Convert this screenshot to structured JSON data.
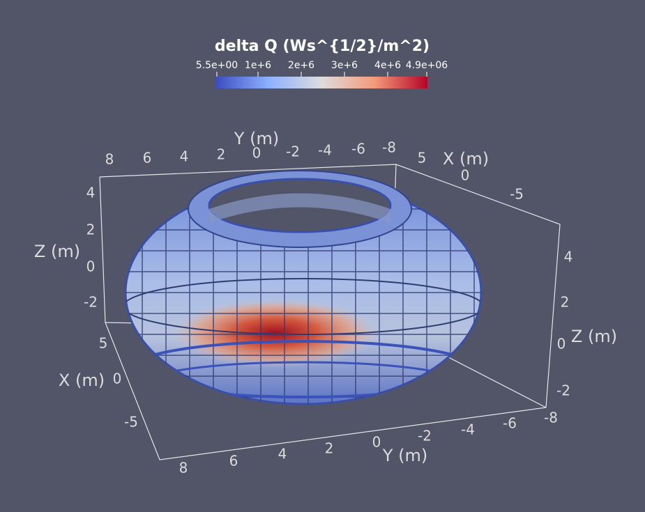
{
  "colorbar": {
    "title": "delta Q (Ws^{1/2}/m^2)",
    "ticks": [
      "5.5e+00",
      "1e+6",
      "2e+6",
      "3e+6",
      "4e+6",
      "4.9e+06"
    ]
  },
  "axes": {
    "y_top": {
      "label": "Y (m)",
      "ticks": [
        "8",
        "6",
        "4",
        "2",
        "0",
        "-2",
        "-4",
        "-6",
        "-8"
      ]
    },
    "x_top": {
      "label": "X (m)",
      "ticks": [
        "5",
        "0",
        "-5"
      ]
    },
    "z_left": {
      "label": "Z (m)",
      "ticks": [
        "4",
        "2",
        "0",
        "-2"
      ]
    },
    "x_left": {
      "label": "X (m)",
      "ticks": [
        "5",
        "0",
        "-5"
      ]
    },
    "y_bottom": {
      "label": "Y (m)",
      "ticks": [
        "8",
        "6",
        "4",
        "2",
        "0",
        "-2",
        "-4",
        "-6",
        "-8"
      ]
    },
    "z_right": {
      "label": "Z (m)",
      "ticks": [
        "4",
        "2",
        "0",
        "-2"
      ]
    }
  }
}
